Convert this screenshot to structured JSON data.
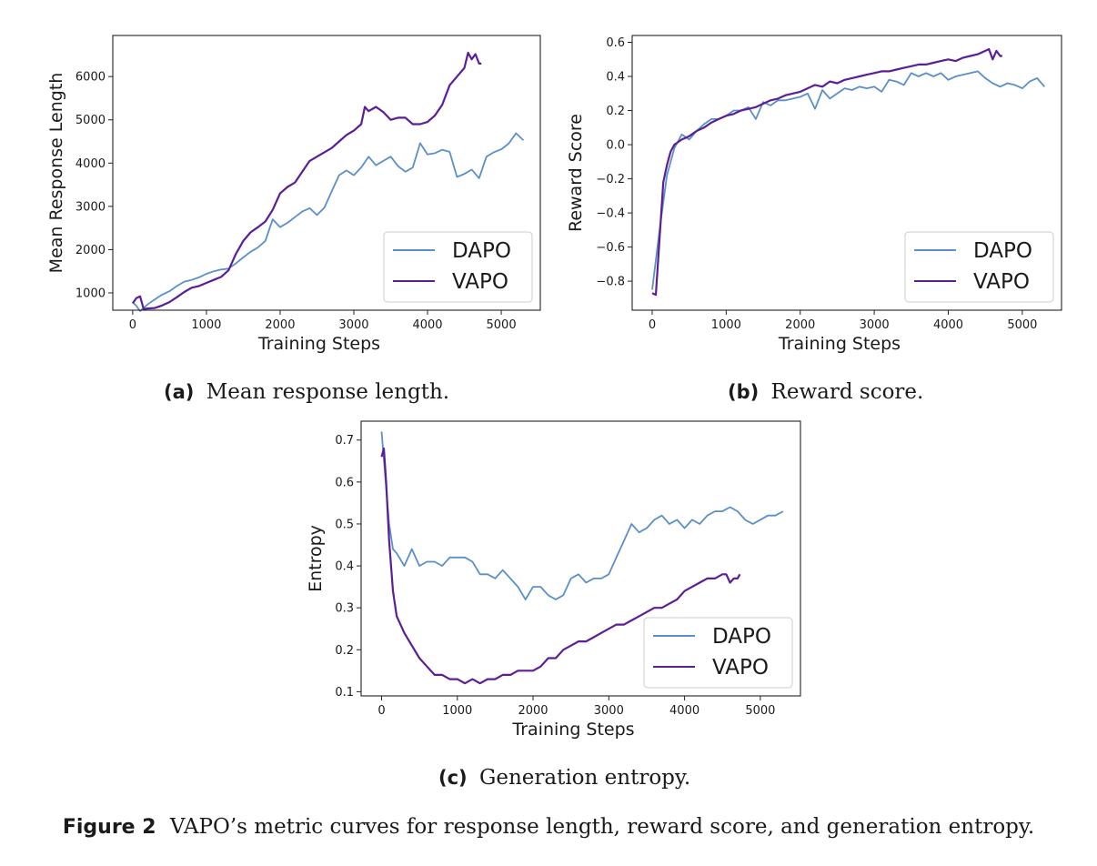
{
  "colors": {
    "dapo": "#5b8fc9",
    "vapo": "#5a1f96"
  },
  "figure_caption": {
    "tag": "Figure 2",
    "text": "VAPO’s metric curves for response length, reward score, and generation entropy."
  },
  "subcaptions": [
    {
      "tag": "(a)",
      "text": "Mean response length."
    },
    {
      "tag": "(b)",
      "text": "Reward score."
    },
    {
      "tag": "(c)",
      "text": "Generation entropy."
    }
  ],
  "chart_data": [
    {
      "type": "line",
      "xlabel": "Training Steps",
      "ylabel": "Mean Response Length",
      "xlim": [
        -270,
        5530
      ],
      "ylim": [
        600,
        6950
      ],
      "xticks": [
        0,
        1000,
        2000,
        3000,
        4000,
        5000
      ],
      "yticks": [
        1000,
        2000,
        3000,
        4000,
        5000,
        6000
      ],
      "grid": false,
      "legend": "lower-right",
      "series": [
        {
          "name": "DAPO",
          "x": [
            0,
            50,
            100,
            200,
            300,
            400,
            500,
            600,
            700,
            800,
            900,
            1000,
            1100,
            1200,
            1300,
            1400,
            1500,
            1600,
            1700,
            1800,
            1900,
            2000,
            2100,
            2200,
            2300,
            2400,
            2500,
            2600,
            2700,
            2800,
            2900,
            3000,
            3100,
            3200,
            3300,
            3400,
            3500,
            3600,
            3700,
            3800,
            3900,
            4000,
            4100,
            4200,
            4300,
            4400,
            4500,
            4600,
            4700,
            4800,
            4900,
            5000,
            5100,
            5200,
            5300
          ],
          "y": [
            780,
            700,
            580,
            730,
            850,
            960,
            1040,
            1160,
            1260,
            1300,
            1360,
            1440,
            1500,
            1540,
            1560,
            1680,
            1820,
            1950,
            2050,
            2200,
            2700,
            2520,
            2620,
            2750,
            2880,
            2960,
            2800,
            2970,
            3350,
            3720,
            3830,
            3720,
            3900,
            4150,
            3950,
            4050,
            4150,
            3930,
            3800,
            3900,
            4460,
            4200,
            4230,
            4310,
            4260,
            3680,
            3750,
            3850,
            3650,
            4150,
            4250,
            4320,
            4450,
            4690,
            4530
          ]
        },
        {
          "name": "VAPO",
          "x": [
            0,
            50,
            100,
            150,
            200,
            300,
            400,
            500,
            600,
            700,
            800,
            900,
            1000,
            1100,
            1200,
            1300,
            1400,
            1500,
            1600,
            1700,
            1800,
            1900,
            2000,
            2100,
            2200,
            2300,
            2400,
            2500,
            2600,
            2700,
            2800,
            2900,
            3000,
            3100,
            3150,
            3200,
            3300,
            3400,
            3500,
            3600,
            3700,
            3800,
            3900,
            4000,
            4100,
            4200,
            4300,
            4400,
            4500,
            4550,
            4600,
            4650,
            4700,
            4730
          ],
          "y": [
            760,
            880,
            920,
            620,
            640,
            650,
            710,
            790,
            900,
            1020,
            1120,
            1160,
            1230,
            1300,
            1370,
            1520,
            1900,
            2200,
            2400,
            2520,
            2650,
            2920,
            3300,
            3450,
            3550,
            3800,
            4050,
            4150,
            4250,
            4350,
            4500,
            4650,
            4750,
            4900,
            5300,
            5200,
            5300,
            5180,
            5000,
            5050,
            5050,
            4900,
            4900,
            4950,
            5100,
            5350,
            5800,
            6000,
            6200,
            6550,
            6400,
            6520,
            6300,
            6300
          ]
        }
      ]
    },
    {
      "type": "line",
      "xlabel": "Training Steps",
      "ylabel": "Reward Score",
      "xlim": [
        -270,
        5530
      ],
      "ylim": [
        -0.97,
        0.64
      ],
      "xticks": [
        0,
        1000,
        2000,
        3000,
        4000,
        5000
      ],
      "yticks": [
        -0.8,
        -0.6,
        -0.4,
        -0.2,
        0.0,
        0.2,
        0.4,
        0.6
      ],
      "grid": false,
      "legend": "lower-right",
      "series": [
        {
          "name": "DAPO",
          "x": [
            0,
            100,
            200,
            300,
            400,
            500,
            600,
            700,
            800,
            900,
            1000,
            1100,
            1200,
            1300,
            1400,
            1500,
            1600,
            1700,
            1800,
            1900,
            2000,
            2100,
            2200,
            2300,
            2400,
            2500,
            2600,
            2700,
            2800,
            2900,
            3000,
            3100,
            3200,
            3300,
            3400,
            3500,
            3600,
            3700,
            3800,
            3900,
            4000,
            4100,
            4200,
            4300,
            4400,
            4500,
            4600,
            4700,
            4800,
            4900,
            5000,
            5100,
            5200,
            5300
          ],
          "y": [
            -0.85,
            -0.5,
            -0.18,
            -0.02,
            0.06,
            0.03,
            0.08,
            0.12,
            0.15,
            0.15,
            0.17,
            0.2,
            0.2,
            0.22,
            0.15,
            0.25,
            0.23,
            0.26,
            0.26,
            0.27,
            0.28,
            0.3,
            0.21,
            0.32,
            0.27,
            0.3,
            0.33,
            0.32,
            0.34,
            0.33,
            0.34,
            0.31,
            0.38,
            0.37,
            0.35,
            0.42,
            0.4,
            0.42,
            0.4,
            0.42,
            0.38,
            0.4,
            0.41,
            0.42,
            0.43,
            0.39,
            0.36,
            0.34,
            0.36,
            0.35,
            0.33,
            0.37,
            0.39,
            0.34
          ]
        },
        {
          "name": "VAPO",
          "x": [
            0,
            50,
            100,
            150,
            200,
            250,
            300,
            400,
            500,
            600,
            700,
            800,
            900,
            1000,
            1100,
            1200,
            1300,
            1400,
            1500,
            1600,
            1700,
            1800,
            1900,
            2000,
            2100,
            2200,
            2300,
            2400,
            2500,
            2600,
            2700,
            2800,
            2900,
            3000,
            3100,
            3200,
            3300,
            3400,
            3500,
            3600,
            3700,
            3800,
            3900,
            4000,
            4100,
            4200,
            4300,
            4400,
            4500,
            4550,
            4600,
            4650,
            4700,
            4730
          ],
          "y": [
            -0.87,
            -0.88,
            -0.55,
            -0.22,
            -0.12,
            -0.04,
            0.0,
            0.03,
            0.05,
            0.08,
            0.1,
            0.13,
            0.15,
            0.17,
            0.18,
            0.2,
            0.21,
            0.22,
            0.24,
            0.26,
            0.27,
            0.29,
            0.3,
            0.31,
            0.33,
            0.35,
            0.34,
            0.37,
            0.36,
            0.38,
            0.39,
            0.4,
            0.41,
            0.42,
            0.43,
            0.43,
            0.44,
            0.45,
            0.46,
            0.47,
            0.47,
            0.48,
            0.49,
            0.5,
            0.49,
            0.51,
            0.52,
            0.53,
            0.55,
            0.56,
            0.5,
            0.55,
            0.52,
            0.52
          ]
        }
      ]
    },
    {
      "type": "line",
      "xlabel": "Training Steps",
      "ylabel": "Entropy",
      "xlim": [
        -270,
        5530
      ],
      "ylim": [
        0.09,
        0.745
      ],
      "xticks": [
        0,
        1000,
        2000,
        3000,
        4000,
        5000
      ],
      "yticks": [
        0.1,
        0.2,
        0.3,
        0.4,
        0.5,
        0.6,
        0.7
      ],
      "grid": false,
      "legend": "lower-right",
      "series": [
        {
          "name": "DAPO",
          "x": [
            0,
            100,
            150,
            200,
            300,
            400,
            500,
            600,
            700,
            800,
            900,
            1000,
            1100,
            1200,
            1300,
            1400,
            1500,
            1600,
            1700,
            1800,
            1900,
            2000,
            2100,
            2200,
            2300,
            2400,
            2500,
            2600,
            2700,
            2800,
            2900,
            3000,
            3100,
            3200,
            3300,
            3400,
            3500,
            3600,
            3700,
            3800,
            3900,
            4000,
            4100,
            4200,
            4300,
            4400,
            4500,
            4600,
            4700,
            4800,
            4900,
            5000,
            5100,
            5200,
            5300
          ],
          "y": [
            0.72,
            0.5,
            0.44,
            0.43,
            0.4,
            0.44,
            0.4,
            0.41,
            0.41,
            0.4,
            0.42,
            0.42,
            0.42,
            0.41,
            0.38,
            0.38,
            0.37,
            0.39,
            0.37,
            0.35,
            0.32,
            0.35,
            0.35,
            0.33,
            0.32,
            0.33,
            0.37,
            0.38,
            0.36,
            0.37,
            0.37,
            0.38,
            0.42,
            0.46,
            0.5,
            0.48,
            0.49,
            0.51,
            0.52,
            0.5,
            0.51,
            0.49,
            0.51,
            0.5,
            0.52,
            0.53,
            0.53,
            0.54,
            0.53,
            0.51,
            0.5,
            0.51,
            0.52,
            0.52,
            0.53
          ]
        },
        {
          "name": "VAPO",
          "x": [
            0,
            30,
            60,
            100,
            150,
            200,
            250,
            300,
            400,
            500,
            600,
            700,
            800,
            900,
            1000,
            1100,
            1200,
            1300,
            1400,
            1500,
            1600,
            1700,
            1800,
            1900,
            2000,
            2100,
            2200,
            2300,
            2400,
            2500,
            2600,
            2700,
            2800,
            2900,
            3000,
            3100,
            3200,
            3300,
            3400,
            3500,
            3600,
            3700,
            3800,
            3900,
            4000,
            4100,
            4200,
            4300,
            4400,
            4500,
            4550,
            4600,
            4650,
            4700,
            4730
          ],
          "y": [
            0.66,
            0.68,
            0.6,
            0.46,
            0.34,
            0.28,
            0.26,
            0.24,
            0.21,
            0.18,
            0.16,
            0.14,
            0.14,
            0.13,
            0.13,
            0.12,
            0.13,
            0.12,
            0.13,
            0.13,
            0.14,
            0.14,
            0.15,
            0.15,
            0.15,
            0.16,
            0.18,
            0.18,
            0.2,
            0.21,
            0.22,
            0.22,
            0.23,
            0.24,
            0.25,
            0.26,
            0.26,
            0.27,
            0.28,
            0.29,
            0.3,
            0.3,
            0.31,
            0.32,
            0.34,
            0.35,
            0.36,
            0.37,
            0.37,
            0.38,
            0.38,
            0.36,
            0.37,
            0.37,
            0.38
          ]
        }
      ]
    }
  ]
}
